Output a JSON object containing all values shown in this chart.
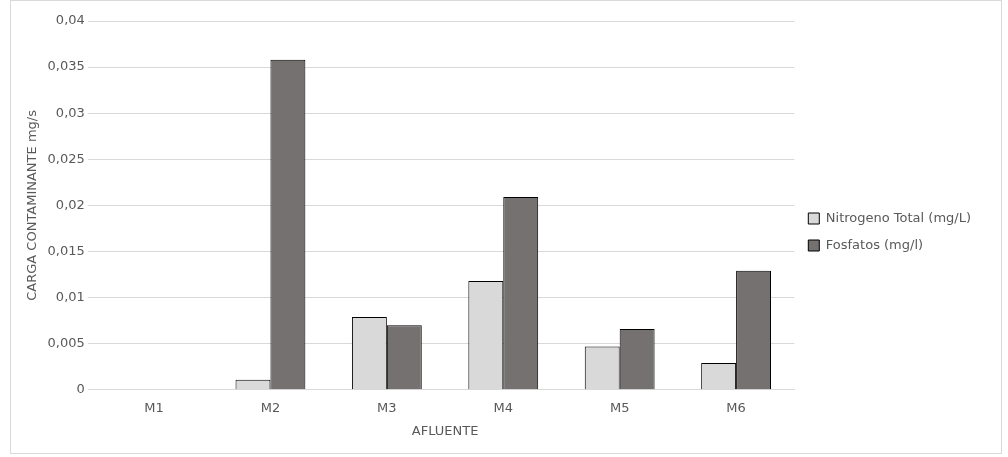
{
  "chart_data": {
    "type": "bar",
    "xlabel": "AFLUENTE",
    "ylabel": "CARGA CONTAMINANTE mg/s",
    "categories": [
      "M1",
      "M2",
      "M3",
      "M4",
      "M5",
      "M6"
    ],
    "series": [
      {
        "name": "Nitrogeno Total (mg/L)",
        "color": "#d9d9d9",
        "values": [
          0,
          0.0011,
          0.0079,
          0.0118,
          0.0047,
          0.0029
        ]
      },
      {
        "name": "Fosfatos (mg/l)",
        "color": "#767171",
        "values": [
          0,
          0.0358,
          0.007,
          0.0209,
          0.0066,
          0.0129
        ]
      }
    ],
    "ylim": [
      0,
      0.04
    ],
    "yticks": [
      0,
      {
        "value": 0.005,
        "label": "0,005"
      },
      {
        "value": 0.01,
        "label": "0,01"
      },
      {
        "value": 0.015,
        "label": "0,015"
      },
      {
        "value": 0.02,
        "label": "0,02"
      },
      {
        "value": 0.025,
        "label": "0,025"
      },
      {
        "value": 0.03,
        "label": "0,03"
      },
      {
        "value": 0.035,
        "label": "0,035"
      },
      {
        "value": 0.04,
        "label": "0,04"
      }
    ],
    "grid": "y",
    "legend": "right"
  }
}
